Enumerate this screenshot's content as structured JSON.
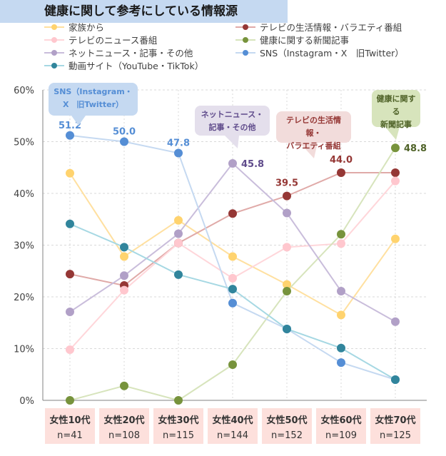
{
  "title": "健康に関して参考にしている情報源",
  "chart_data": {
    "type": "line",
    "categories": [
      "女性10代",
      "女性20代",
      "女性30代",
      "女性40代",
      "女性50代",
      "女性60代",
      "女性70代"
    ],
    "sample_sizes": [
      "n=41",
      "n=108",
      "n=115",
      "n=144",
      "n=152",
      "n=109",
      "n=125"
    ],
    "ylim": [
      0,
      60
    ],
    "yticks": [
      "0%",
      "10%",
      "20%",
      "30%",
      "40%",
      "50%",
      "60%"
    ],
    "grid": true,
    "legend_position": "top",
    "series": [
      {
        "name": "家族から",
        "color": "#ffd36e",
        "line": "#ffe0a0",
        "values": [
          43.9,
          27.8,
          34.8,
          27.8,
          22.4,
          16.5,
          31.2
        ]
      },
      {
        "name": "テレビの生活情報・バラエティ番組",
        "color": "#953735",
        "line": "#e0aaa8",
        "values": [
          24.4,
          22.2,
          30.4,
          36.1,
          39.5,
          44.0,
          44.0
        ]
      },
      {
        "name": "テレビのニュース番組",
        "color": "#ffc7ce",
        "line": "#ffd6da",
        "values": [
          9.8,
          21.3,
          30.4,
          23.6,
          29.6,
          30.3,
          42.4
        ]
      },
      {
        "name": "健康に関する新聞記事",
        "color": "#77933c",
        "line": "#d7e4bc",
        "values": [
          0.0,
          2.8,
          0.0,
          6.9,
          21.1,
          32.1,
          48.8
        ]
      },
      {
        "name": "ネットニュース・記事・その他",
        "color": "#b1a0c7",
        "line": "#c9bddb",
        "values": [
          17.1,
          24.1,
          32.2,
          45.8,
          36.2,
          21.1,
          15.2
        ]
      },
      {
        "name": "SNS（Instagram・X　旧Twitter）",
        "color": "#558ed5",
        "line": "#c5d9f1",
        "values": [
          51.2,
          50.0,
          47.8,
          18.8,
          13.8,
          7.3,
          4.0
        ]
      },
      {
        "name": "動画サイト（YouTube・TikTok）",
        "color": "#31859c",
        "line": "#a6d8e3",
        "values": [
          34.1,
          29.6,
          24.3,
          21.5,
          13.8,
          10.1,
          4.0
        ]
      }
    ],
    "data_labels": [
      {
        "series": 5,
        "index": 0,
        "text": "51.2",
        "color": "#558ed5"
      },
      {
        "series": 5,
        "index": 1,
        "text": "50.0",
        "color": "#558ed5"
      },
      {
        "series": 5,
        "index": 2,
        "text": "47.8",
        "color": "#558ed5"
      },
      {
        "series": 4,
        "index": 3,
        "text": "45.8",
        "color": "#5f4b8b"
      },
      {
        "series": 1,
        "index": 4,
        "text": "39.5",
        "color": "#953735"
      },
      {
        "series": 1,
        "index": 5,
        "text": "44.0",
        "color": "#953735"
      },
      {
        "series": 3,
        "index": 6,
        "text": "48.8",
        "color": "#4f6228"
      }
    ],
    "callouts": [
      {
        "text1": "SNS（Instagram・",
        "text2": "X　旧Twitter）",
        "bg": "#c5d9f1",
        "color": "#558ed5"
      },
      {
        "text1": "ネットニュース・",
        "text2": "記事・その他",
        "bg": "#e4dfec",
        "color": "#5f4b8b"
      },
      {
        "text1": "テレビの生活情報・",
        "text2": "バラエティ番組",
        "bg": "#f2dcdb",
        "color": "#953735"
      },
      {
        "text1": "健康に関する",
        "text2": "新聞記事",
        "bg": "#d7e4bc",
        "color": "#4f6228"
      }
    ]
  }
}
